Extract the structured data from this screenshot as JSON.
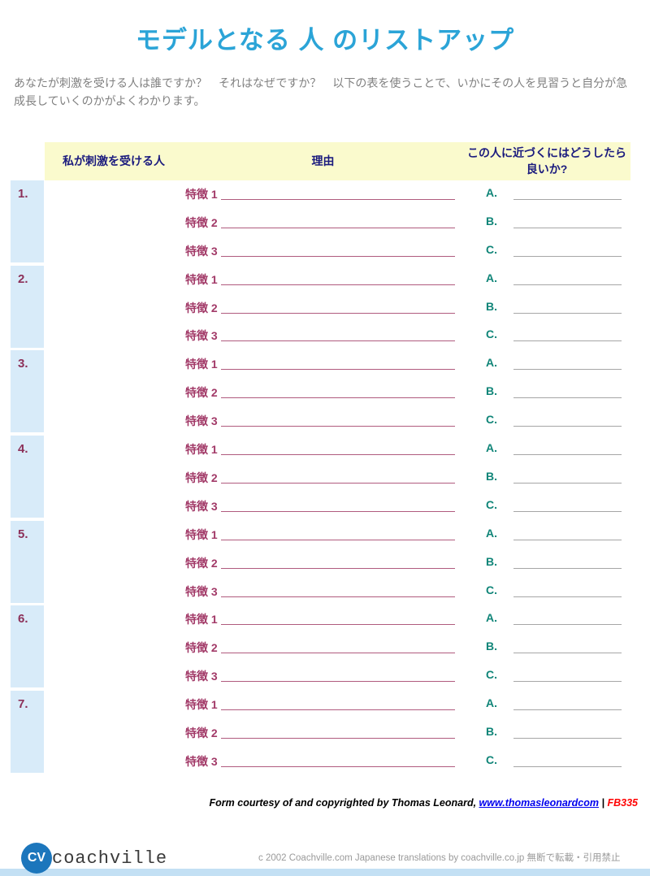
{
  "title": "モデルとなる 人 のリストアップ",
  "intro": "あなたが刺激を受ける人は誰ですか？　それはなぜですか？　以下の表を使うことで、いかにその人を見習うと自分が急成長していくのかがよくわかります。",
  "table": {
    "headers": [
      "私が刺激を受ける人",
      "理由",
      "この人に近づくにはどうしたら良いか?"
    ],
    "row_numbers": [
      "1.",
      "2.",
      "3.",
      "4.",
      "5.",
      "6.",
      "7."
    ],
    "trait_labels": [
      "特徴 1",
      "特徴 2",
      "特徴 3"
    ],
    "answer_labels": [
      "A.",
      "B.",
      "C."
    ]
  },
  "footer": {
    "credit_text": "Form courtesy of and copyrighted by Thomas Leonard, ",
    "credit_link": "www.thomasleonardcom",
    "credit_separator": " | ",
    "credit_code": "FB335"
  },
  "bottom_bar": {
    "logo_initials": "CV",
    "logo_text": "coachville",
    "copyright": "c  2002 Coachville.com  Japanese translations by coachville.co.jp  無断で転載・引用禁止"
  },
  "colors": {
    "title_cyan": "#2BA4D7",
    "header_bg_yellow": "#FAFACD",
    "header_navy": "#1B1B7E",
    "number_col_blue": "#D8EBF9",
    "number_maroon": "#8C3059",
    "trait_maroon": "#A23A68",
    "answer_teal": "#108578",
    "blank_line_gray": "#A6A6A6",
    "link_blue": "#0000EE",
    "code_red": "#FF0000",
    "logo_blue": "#1C76BC",
    "bottom_bar_blue": "#C3E0F4"
  }
}
